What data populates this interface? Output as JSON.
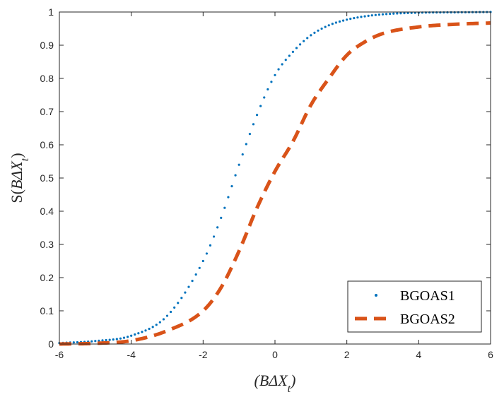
{
  "chart_data": {
    "type": "line",
    "title": "",
    "xlabel": "(BΔX_t)",
    "ylabel": "S(BΔX_t)",
    "xlim": [
      -6,
      6
    ],
    "ylim": [
      0,
      1
    ],
    "x_ticks": [
      -6,
      -4,
      -2,
      0,
      2,
      4,
      6
    ],
    "y_ticks": [
      0,
      0.1,
      0.2,
      0.3,
      0.4,
      0.5,
      0.6,
      0.7,
      0.8,
      0.9,
      1
    ],
    "x_tick_labels": [
      "-6",
      "-4",
      "-2",
      "0",
      "2",
      "4",
      "6"
    ],
    "y_tick_labels": [
      "0",
      "0.1",
      "0.2",
      "0.3",
      "0.4",
      "0.5",
      "0.6",
      "0.7",
      "0.8",
      "0.9",
      "1"
    ],
    "grid": false,
    "legend_position": "bottom-right",
    "x": [
      -6,
      -5,
      -4,
      -3,
      -2,
      -1.5,
      -1,
      -0.5,
      0,
      0.5,
      1,
      1.5,
      2,
      2.5,
      3,
      4,
      5,
      6
    ],
    "series": [
      {
        "name": "BGOAS1",
        "style": "dotted",
        "color": "#0072BD",
        "values": [
          0.003,
          0.009,
          0.025,
          0.085,
          0.25,
          0.38,
          0.54,
          0.69,
          0.81,
          0.88,
          0.93,
          0.96,
          0.977,
          0.987,
          0.993,
          0.998,
          0.999,
          1.0
        ]
      },
      {
        "name": "BGOAS2",
        "style": "dashed",
        "color": "#D95319",
        "values": [
          0.0,
          0.002,
          0.01,
          0.04,
          0.1,
          0.17,
          0.28,
          0.41,
          0.52,
          0.61,
          0.72,
          0.8,
          0.87,
          0.91,
          0.935,
          0.955,
          0.963,
          0.967
        ]
      }
    ]
  }
}
